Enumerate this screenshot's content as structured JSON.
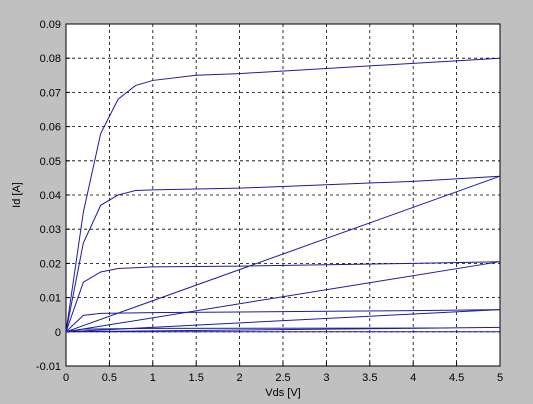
{
  "chart_data": {
    "type": "line",
    "xlabel": "Vds  [V]",
    "ylabel": "Id  [A]",
    "xlim": [
      0,
      5
    ],
    "ylim": [
      -0.01,
      0.09
    ],
    "xticks": [
      0,
      0.5,
      1,
      1.5,
      2,
      2.5,
      3,
      3.5,
      4,
      4.5,
      5
    ],
    "yticks": [
      -0.01,
      0,
      0.01,
      0.02,
      0.03,
      0.04,
      0.05,
      0.06,
      0.07,
      0.08,
      0.09
    ],
    "grid": true,
    "series": [
      {
        "color": "#1c1ca0",
        "x": [
          0,
          0.2,
          0.4,
          0.6,
          0.8,
          1,
          1.5,
          2,
          3,
          4,
          5
        ],
        "values": [
          0,
          0.035,
          0.058,
          0.068,
          0.072,
          0.0735,
          0.075,
          0.0755,
          0.077,
          0.0785,
          0.08
        ]
      },
      {
        "color": "#1c1ca0",
        "x": [
          0,
          0.2,
          0.4,
          0.6,
          0.8,
          1,
          2,
          3,
          4,
          5
        ],
        "values": [
          0,
          0.026,
          0.037,
          0.04,
          0.0413,
          0.0415,
          0.042,
          0.043,
          0.044,
          0.0455
        ]
      },
      {
        "color": "#1c1ca0",
        "x": [
          0,
          0.2,
          0.4,
          0.6,
          1,
          2,
          3,
          4,
          5
        ],
        "values": [
          0,
          0.0145,
          0.0175,
          0.0185,
          0.019,
          0.0192,
          0.0196,
          0.02,
          0.0205
        ]
      },
      {
        "color": "#1c1ca0",
        "x": [
          0,
          0.2,
          0.4,
          1,
          2,
          3,
          4,
          5
        ],
        "values": [
          0,
          0.0048,
          0.0054,
          0.0056,
          0.0058,
          0.006,
          0.0062,
          0.0065
        ]
      },
      {
        "color": "#1c1ca0",
        "x": [
          0,
          0.2,
          1,
          4.4
        ],
        "values": [
          0,
          0.0008,
          0.001,
          0.0011
        ]
      },
      {
        "color": "#1c1ca0",
        "x": [
          0,
          5
        ],
        "values": [
          0,
          0.0455
        ]
      },
      {
        "color": "#1c1ca0",
        "x": [
          0,
          5
        ],
        "values": [
          0,
          0.0205
        ]
      },
      {
        "color": "#1c1ca0",
        "x": [
          0,
          5
        ],
        "values": [
          0,
          0.0065
        ]
      },
      {
        "color": "#1c1ca0",
        "x": [
          0,
          5
        ],
        "values": [
          0,
          0.0013
        ]
      },
      {
        "color": "#1c1ca0",
        "x": [
          0,
          5
        ],
        "values": [
          0,
          0
        ]
      }
    ]
  }
}
